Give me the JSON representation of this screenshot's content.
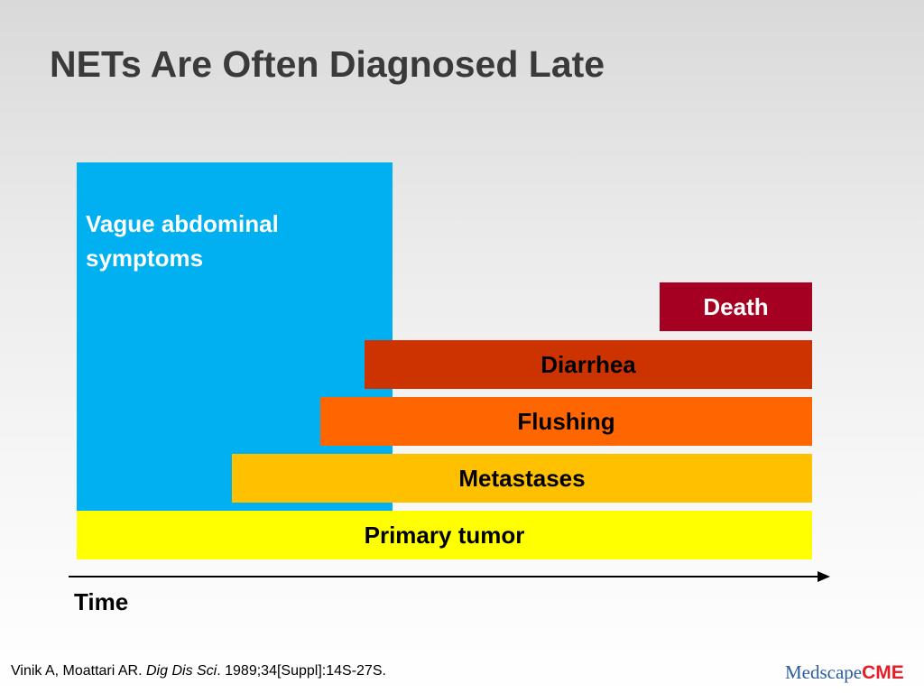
{
  "title": "NETs Are Often Diagnosed Late",
  "diagram": {
    "bars": {
      "vague": "Vague abdominal symptoms",
      "primary": "Primary tumor",
      "metastases": "Metastases",
      "flushing": "Flushing",
      "diarrhea": "Diarrhea",
      "death": "Death"
    },
    "axis_label": "Time"
  },
  "colors": {
    "vague": "#00b0f0",
    "primary": "#ffff00",
    "metastases": "#ffc000",
    "flushing": "#ff6600",
    "diarrhea": "#cc3300",
    "death": "#a50021"
  },
  "citation": {
    "authors": "Vinik A, Moattari AR. ",
    "journal": "Dig Dis Sci",
    "details": ". 1989;34[Suppl]:14S-27S."
  },
  "logo": {
    "med": "Medscape",
    "cme": "CME"
  }
}
